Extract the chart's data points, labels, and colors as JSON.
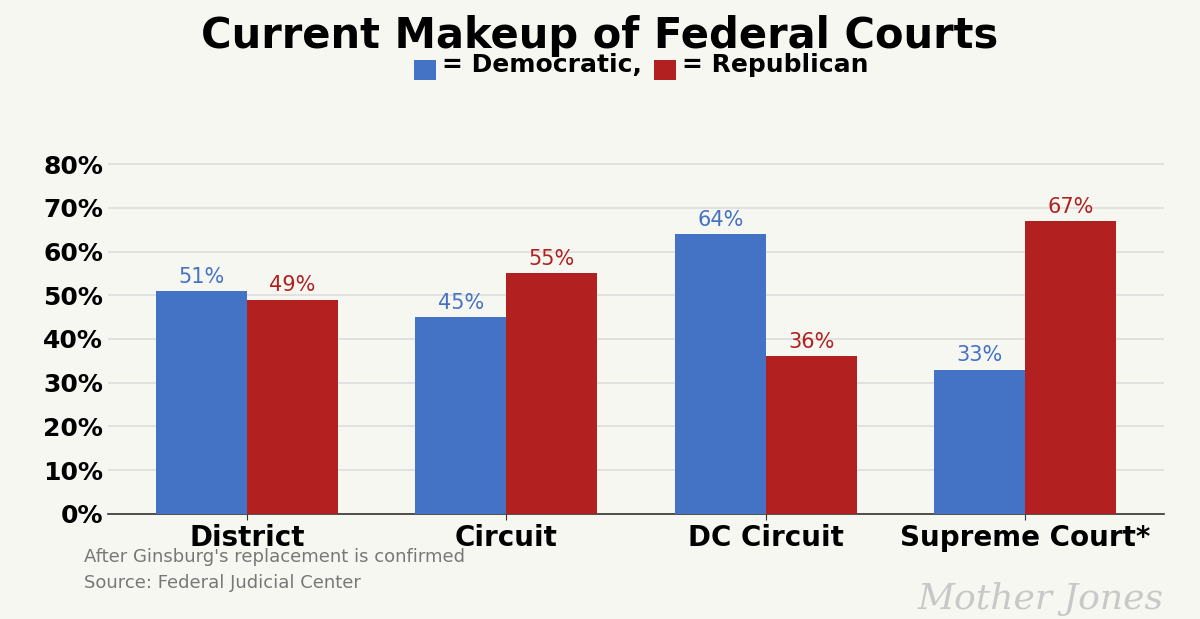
{
  "title": "Current Makeup of Federal Courts",
  "title_fontsize": 30,
  "title_fontweight": "bold",
  "categories": [
    "District",
    "Circuit",
    "DC Circuit",
    "Supreme Court*"
  ],
  "democratic_values": [
    51,
    45,
    64,
    33
  ],
  "republican_values": [
    49,
    55,
    36,
    67
  ],
  "democratic_color": "#4472C4",
  "republican_color": "#B22020",
  "bar_width": 0.35,
  "ylim": [
    0,
    85
  ],
  "yticks": [
    0,
    10,
    20,
    30,
    40,
    50,
    60,
    70,
    80
  ],
  "ytick_labels": [
    "0%",
    "10%",
    "20%",
    "30%",
    "40%",
    "50%",
    "60%",
    "70%",
    "80%"
  ],
  "background_color": "#F7F7F2",
  "footnote_line1": "After Ginsburg's replacement is confirmed",
  "footnote_line2": "Source: Federal Judicial Center",
  "watermark": "Mother Jones",
  "bar_label_fontsize": 15,
  "axis_tick_fontsize": 18,
  "xtick_fontsize": 20,
  "footnote_fontsize": 13,
  "watermark_fontsize": 26,
  "subtitle_fontsize": 18,
  "grid_color": "#DDDDDD",
  "grid_linewidth": 1.2
}
